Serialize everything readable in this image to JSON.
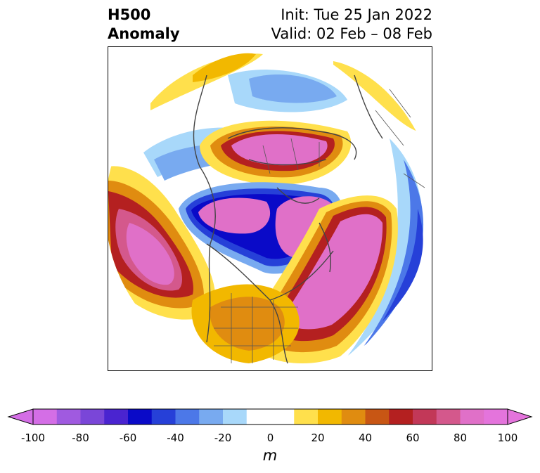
{
  "title": {
    "left": "H500\nAnomaly",
    "right_line1": "Init: Tue 25 Jan 2022",
    "right_line2": "Valid: 02 Feb – 08 Feb"
  },
  "colorbar": {
    "unit": "m",
    "ticks": [
      "-100",
      "-80",
      "-60",
      "-40",
      "-20",
      "0",
      "20",
      "40",
      "60",
      "80",
      "100"
    ],
    "colors": [
      "#d46ee6",
      "#a05ae0",
      "#7a46d8",
      "#4a24d0",
      "#0a0ac8",
      "#2640d8",
      "#4c78e8",
      "#78aaf0",
      "#a8d8fa",
      "#ffffff",
      "#ffffff",
      "#ffe04c",
      "#f2b800",
      "#e08c10",
      "#c85614",
      "#b42020",
      "#c23858",
      "#d4588c",
      "#e070c8",
      "#e474dc"
    ]
  }
}
